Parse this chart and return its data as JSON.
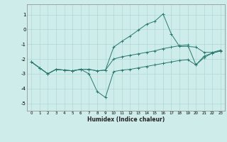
{
  "xlabel": "Humidex (Indice chaleur)",
  "background_color": "#ceecea",
  "grid_color": "#aed8d4",
  "line_color": "#2a7a70",
  "xlim": [
    -0.5,
    23.5
  ],
  "ylim": [
    -5.5,
    1.7
  ],
  "yticks": [
    -5,
    -4,
    -3,
    -2,
    -1,
    0,
    1
  ],
  "xticks": [
    0,
    1,
    2,
    3,
    4,
    5,
    6,
    7,
    8,
    9,
    10,
    11,
    12,
    13,
    14,
    15,
    16,
    17,
    18,
    19,
    20,
    21,
    22,
    23
  ],
  "series": [
    {
      "x": [
        0,
        1,
        2,
        3,
        4,
        5,
        6,
        7,
        8,
        9,
        10,
        11,
        12,
        13,
        14,
        15,
        16,
        17,
        18,
        19,
        20,
        21,
        22,
        23
      ],
      "y": [
        -2.2,
        -2.6,
        -3.0,
        -2.7,
        -2.75,
        -2.8,
        -2.7,
        -2.7,
        -2.8,
        -2.75,
        -1.2,
        -0.8,
        -0.45,
        -0.05,
        0.35,
        0.55,
        1.05,
        -0.3,
        -1.15,
        -1.15,
        -1.2,
        -1.55,
        -1.55,
        -1.4
      ]
    },
    {
      "x": [
        0,
        1,
        2,
        3,
        4,
        5,
        6,
        7,
        8,
        9,
        10,
        11,
        12,
        13,
        14,
        15,
        16,
        17,
        18,
        19,
        20,
        21,
        22,
        23
      ],
      "y": [
        -2.2,
        -2.6,
        -3.0,
        -2.7,
        -2.75,
        -2.8,
        -2.7,
        -3.0,
        -4.2,
        -4.6,
        -2.85,
        -2.75,
        -2.7,
        -2.6,
        -2.5,
        -2.4,
        -2.3,
        -2.2,
        -2.1,
        -2.05,
        -2.4,
        -1.9,
        -1.6,
        -1.45
      ]
    },
    {
      "x": [
        0,
        1,
        2,
        3,
        4,
        5,
        6,
        7,
        8,
        9,
        10,
        11,
        12,
        13,
        14,
        15,
        16,
        17,
        18,
        19,
        20,
        21,
        22,
        23
      ],
      "y": [
        -2.2,
        -2.6,
        -3.0,
        -2.7,
        -2.75,
        -2.8,
        -2.7,
        -2.7,
        -2.8,
        -2.75,
        -2.0,
        -1.85,
        -1.75,
        -1.65,
        -1.55,
        -1.45,
        -1.3,
        -1.2,
        -1.1,
        -1.05,
        -2.4,
        -1.8,
        -1.6,
        -1.45
      ]
    }
  ]
}
